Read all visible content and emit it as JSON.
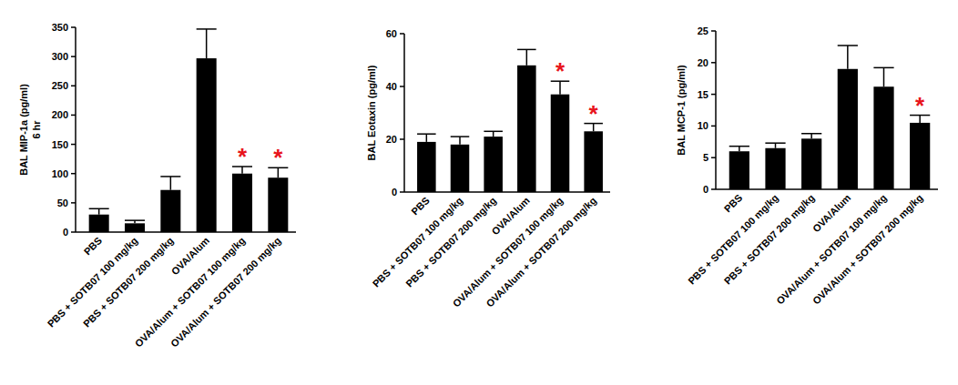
{
  "chart_data": [
    {
      "type": "bar",
      "y_label": [
        "BAL MIP-1a (pg/ml)",
        "6 hr"
      ],
      "categories": [
        "PBS",
        "PBS + SOTB07 100 mg/kg",
        "PBS + SOTB07 200 mg/kg",
        "OVA/Alum",
        "OVA/Alum + SOTB07 100 mg/kg",
        "OVA/Alum + SOTB07 200 mg/kg"
      ],
      "values": [
        30,
        15,
        72,
        297,
        100,
        93
      ],
      "errors": [
        10,
        5,
        23,
        50,
        12,
        17
      ],
      "color": "#000000",
      "ylim": [
        0,
        350
      ],
      "yticks": [
        0,
        50,
        100,
        150,
        200,
        250,
        300,
        350
      ],
      "annotations": [
        {
          "index": 4,
          "text": "*"
        },
        {
          "index": 5,
          "text": "*"
        }
      ]
    },
    {
      "type": "bar",
      "y_label": [
        "BAL Eotaxin (pg/ml)"
      ],
      "categories": [
        "PBS",
        "PBS + SOTB07 100 mg/kg",
        "PBS + SOTB07 200 mg/kg",
        "OVA/Alum",
        "OVA/Alum + SOTB07 100 mg/kg",
        "OVA/Alum + SOTB07 200 mg/kg"
      ],
      "values": [
        19,
        18,
        21,
        48,
        37,
        23
      ],
      "errors": [
        3,
        3,
        2,
        6,
        5,
        3
      ],
      "color": "#000000",
      "ylim": [
        0,
        60
      ],
      "yticks": [
        0,
        20,
        40,
        60
      ],
      "annotations": [
        {
          "index": 4,
          "text": "*"
        },
        {
          "index": 5,
          "text": "*"
        }
      ]
    },
    {
      "type": "bar",
      "y_label": [
        "BAL MCP-1 (pg/ml)"
      ],
      "categories": [
        "PBS",
        "PBS + SOTB07 100 mg/kg",
        "PBS + SOTB07 200 mg/kg",
        "OVA/Alum",
        "OVA/Alum + SOTB07 100 mg/kg",
        "OVA/Alum + SOTB07 200 mg/kg"
      ],
      "values": [
        6,
        6.5,
        8,
        19,
        16.2,
        10.5
      ],
      "errors": [
        0.8,
        0.8,
        0.8,
        3.7,
        3,
        1.2
      ],
      "color": "#000000",
      "ylim": [
        0,
        25
      ],
      "yticks": [
        0,
        5,
        10,
        15,
        20,
        25
      ],
      "annotations": [
        {
          "index": 5,
          "text": "*"
        }
      ]
    }
  ]
}
